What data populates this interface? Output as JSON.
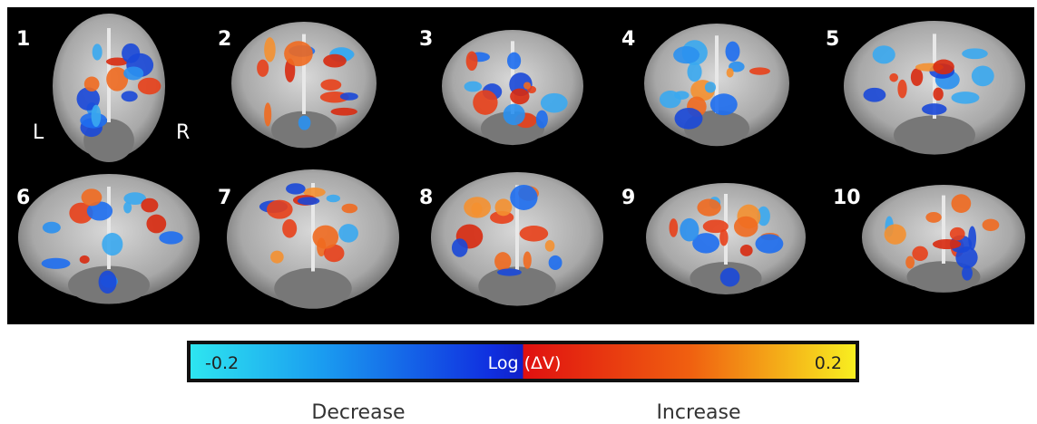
{
  "panels": [
    {
      "label": "1"
    },
    {
      "label": "2"
    },
    {
      "label": "3"
    },
    {
      "label": "4"
    },
    {
      "label": "5"
    },
    {
      "label": "6"
    },
    {
      "label": "7"
    },
    {
      "label": "8"
    },
    {
      "label": "9"
    },
    {
      "label": "10"
    }
  ],
  "orientation": {
    "left": "L",
    "right": "R"
  },
  "colorbar": {
    "min_label": "-0.2",
    "title": "Log (ΔV)",
    "max_label": "0.2",
    "left_caption": "Decrease",
    "right_caption": "Increase"
  }
}
